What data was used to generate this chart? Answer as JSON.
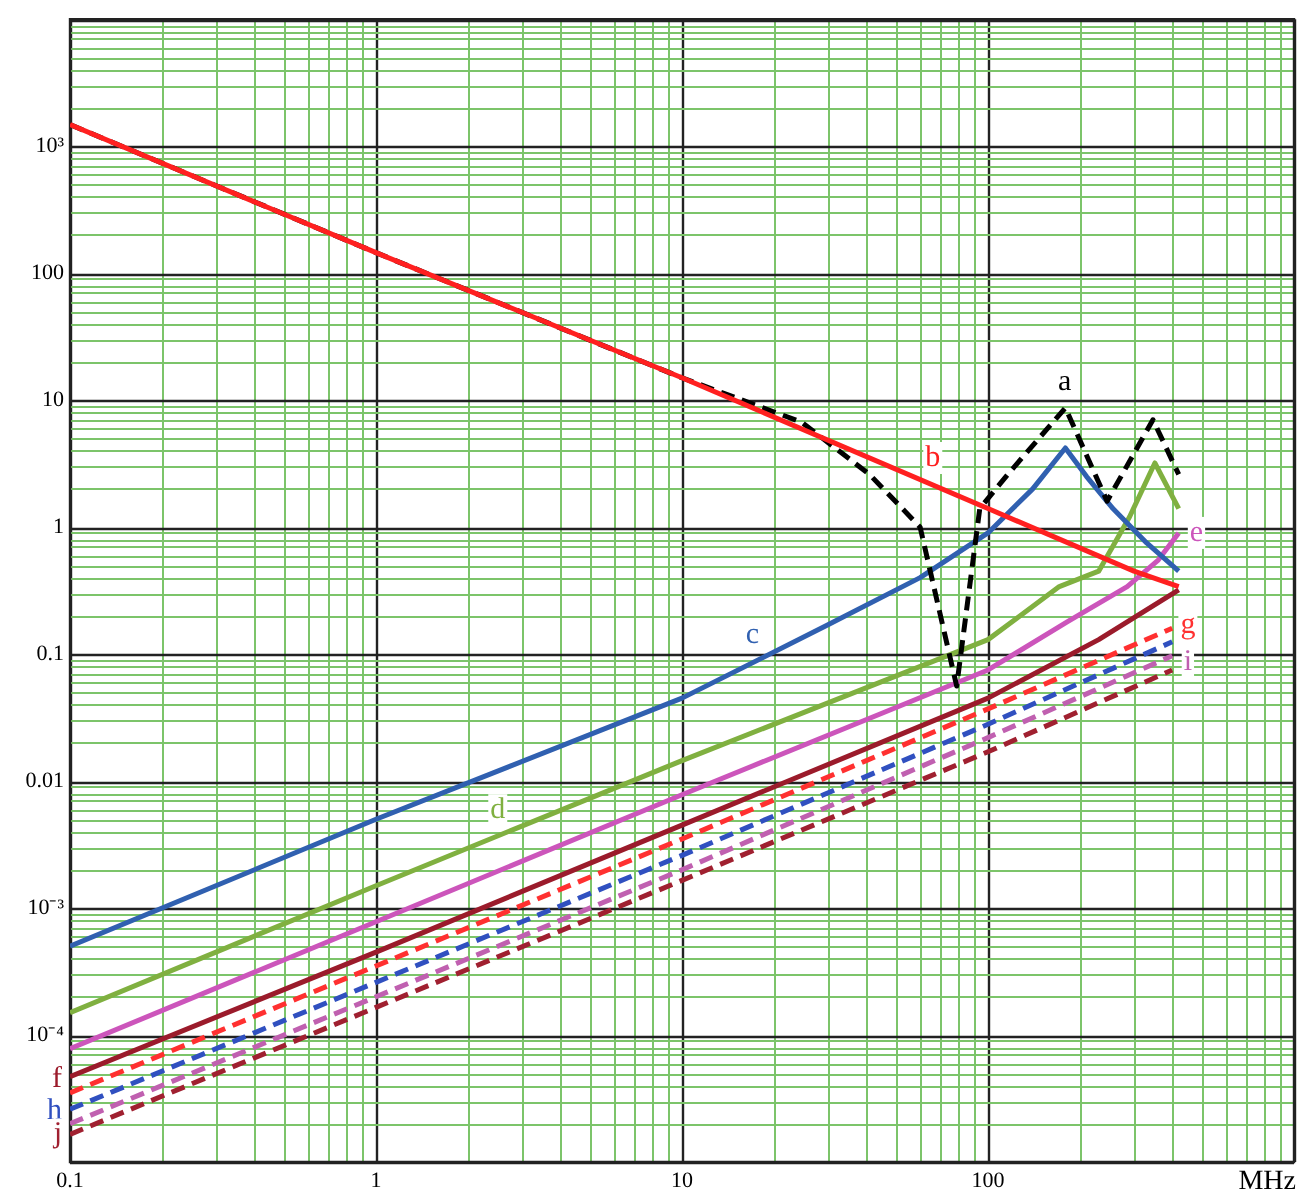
{
  "chart_data": {
    "type": "line",
    "xlabel": "MHz",
    "log": "xy",
    "grid": true,
    "legend": false,
    "xlim": [
      0.1,
      1000
    ],
    "xticks": [
      0.1,
      1,
      10,
      100
    ],
    "ylim": [
      1e-05,
      10000
    ],
    "yticks": [
      {
        "value": 1000,
        "label": "10³"
      },
      100,
      10,
      1,
      0.1,
      0.01,
      {
        "value": 0.001,
        "label": "10⁻³"
      },
      {
        "value": 0.0001,
        "label": "10⁻⁴"
      }
    ],
    "series": [
      {
        "color": "#ff2020",
        "line_style": "solid",
        "x": [
          0.1,
          1,
          10,
          100,
          300,
          420
        ],
        "values": [
          1480,
          145,
          15,
          1.4,
          0.45,
          0.34
        ]
      },
      {
        "color": "#000000",
        "line_style": "dashed",
        "x": [
          0.1,
          1,
          10,
          24.6,
          41,
          60,
          79,
          94,
          116,
          179,
          245,
          346,
          420
        ],
        "values": [
          1480,
          145,
          15,
          6.7,
          2.6,
          1,
          0.056,
          1.4,
          2.6,
          8.7,
          1.6,
          7,
          2.6
        ]
      },
      {
        "color": "#3060b0",
        "line_style": "solid",
        "x": [
          0.1,
          1,
          10,
          30,
          60,
          100,
          140,
          179,
          210,
          256,
          330,
          420
        ],
        "values": [
          0.0005,
          0.005,
          0.045,
          0.17,
          0.4,
          0.9,
          2,
          4.2,
          2.5,
          1.4,
          0.75,
          0.45
        ]
      },
      {
        "color": "#80b040",
        "line_style": "solid",
        "x": [
          0.1,
          1,
          10,
          100,
          171,
          230,
          290,
          351,
          420
        ],
        "values": [
          0.00015,
          0.0015,
          0.0145,
          0.13,
          0.34,
          0.45,
          1.2,
          3.2,
          1.4
        ]
      },
      {
        "color": "#cc55bb",
        "line_style": "solid",
        "x": [
          0.1,
          1,
          10,
          100,
          182,
          285,
          360,
          420
        ],
        "values": [
          7.8e-05,
          0.00078,
          0.0078,
          0.075,
          0.18,
          0.34,
          0.55,
          0.9
        ]
      },
      {
        "color": "#9b1b2b",
        "line_style": "solid",
        "x": [
          0.1,
          1,
          10,
          100,
          230,
          420
        ],
        "values": [
          4.7e-05,
          0.00045,
          0.0045,
          0.045,
          0.13,
          0.32
        ]
      },
      {
        "color": "#ff3030",
        "line_style": "dashed",
        "x": [
          0.1,
          1,
          10,
          100,
          400
        ],
        "values": [
          3.5e-05,
          0.00035,
          0.0035,
          0.037,
          0.16
        ]
      },
      {
        "color": "#3050c0",
        "line_style": "dashed",
        "x": [
          0.1,
          1,
          10,
          100,
          400
        ],
        "values": [
          2.6e-05,
          0.00026,
          0.0026,
          0.028,
          0.125
        ]
      },
      {
        "color": "#c060b0",
        "line_style": "dashed",
        "x": [
          0.1,
          1,
          10,
          100,
          400
        ],
        "values": [
          2e-05,
          0.0002,
          0.002,
          0.022,
          0.097
        ]
      },
      {
        "color": "#a02030",
        "line_style": "dashed",
        "x": [
          0.1,
          1,
          10,
          100,
          400
        ],
        "values": [
          1.65e-05,
          0.000165,
          0.00165,
          0.017,
          0.075
        ]
      }
    ],
    "annotations": [
      {
        "text": "a",
        "x": 178,
        "y": 13.8
      },
      {
        "text": "b",
        "x": 66,
        "y": 3.5
      },
      {
        "text": "c",
        "x": 17,
        "y": 0.14
      },
      {
        "text": "d",
        "x": 2.5,
        "y": 0.0059
      },
      {
        "text": "e",
        "x": 480,
        "y": 0.9
      },
      {
        "text": "f",
        "x": 0.1,
        "y": 4.5e-05
      },
      {
        "text": "g",
        "x": 450,
        "y": 0.17
      },
      {
        "text": "h",
        "x": 0.1,
        "y": 2.5e-05
      },
      {
        "text": "i",
        "x": 450,
        "y": 0.087
      },
      {
        "text": "j",
        "x": 0.1,
        "y": 1.65e-05
      }
    ]
  }
}
